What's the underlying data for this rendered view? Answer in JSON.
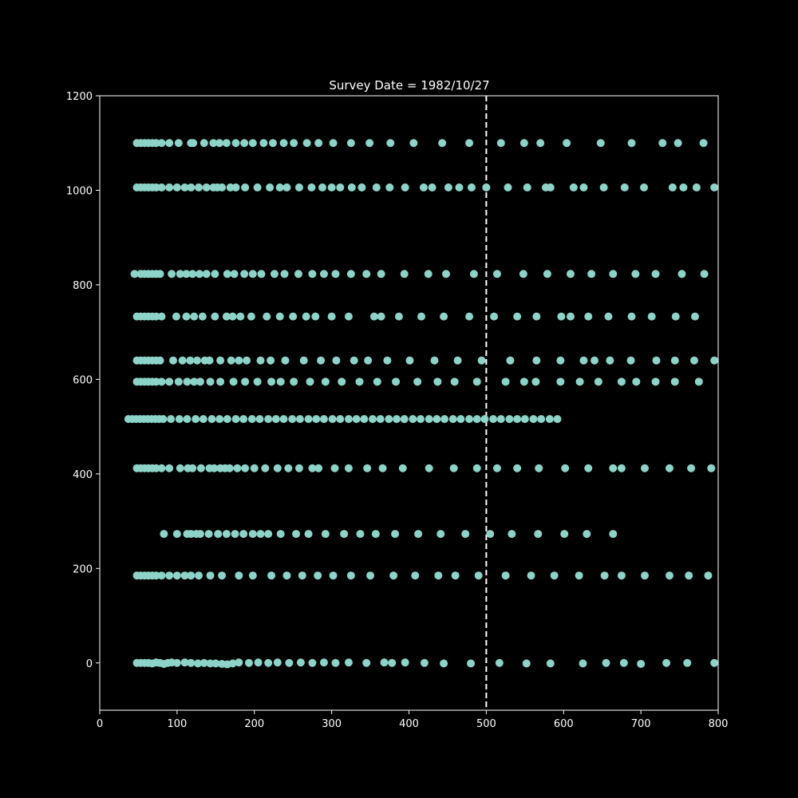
{
  "chart_data": {
    "type": "scatter",
    "title": "Survey Date = 1982/10/27",
    "xlabel": "",
    "ylabel": "",
    "xlim": [
      0,
      800
    ],
    "ylim": [
      -100,
      1200
    ],
    "xticks": [
      0,
      100,
      200,
      300,
      400,
      500,
      600,
      700,
      800
    ],
    "yticks": [
      0,
      200,
      400,
      600,
      800,
      1000,
      1200
    ],
    "xtick_labels": [
      "0",
      "100",
      "200",
      "300",
      "400",
      "500",
      "600",
      "700",
      "800"
    ],
    "ytick_labels": [
      "0",
      "200",
      "400",
      "600",
      "800",
      "1000",
      "1200"
    ],
    "grid": false,
    "background": "#000000",
    "axis_color": "#ffffff",
    "marker_color": "#8dd3c7",
    "reference_line": {
      "x": 500,
      "style": "dashed",
      "color": "#ffffff"
    },
    "rows": [
      {
        "y": 0,
        "x": [
          48,
          53,
          58,
          63,
          68,
          73,
          78,
          83,
          88,
          93,
          100,
          110,
          118,
          127,
          135,
          143,
          150,
          158,
          165,
          172,
          180,
          193,
          205,
          218,
          230,
          245,
          260,
          275,
          290,
          305,
          322,
          345,
          368,
          378,
          395,
          420,
          445,
          480,
          517,
          552,
          583,
          625,
          655,
          678,
          700,
          733,
          760,
          795
        ],
        "dy": [
          0,
          0,
          0,
          0,
          -1,
          1,
          0,
          -2,
          0,
          1,
          0,
          1,
          0,
          -1,
          0,
          -1,
          -1,
          -2,
          -3,
          -1,
          1,
          0,
          1,
          0,
          1,
          0,
          1,
          0,
          1,
          0,
          1,
          0,
          1,
          0,
          1,
          0,
          -1,
          -1,
          0,
          -1,
          -1,
          -1,
          0,
          0,
          -2,
          0,
          0,
          0
        ]
      },
      {
        "y": 185,
        "x": [
          48,
          53,
          58,
          63,
          68,
          73,
          80,
          90,
          100,
          110,
          118,
          128,
          143,
          158,
          180,
          198,
          222,
          242,
          262,
          282,
          302,
          325,
          350,
          380,
          408,
          438,
          460,
          490,
          525,
          558,
          588,
          620,
          653,
          675,
          705,
          737,
          762,
          787
        ]
      },
      {
        "y": 273,
        "x": [
          83,
          100,
          113,
          118,
          125,
          130,
          141,
          153,
          164,
          175,
          186,
          198,
          208,
          218,
          234,
          254,
          270,
          292,
          316,
          337,
          357,
          382,
          412,
          441,
          473,
          505,
          533,
          567,
          601,
          630,
          664
        ]
      },
      {
        "y": 412,
        "x": [
          48,
          53,
          58,
          63,
          68,
          73,
          80,
          90,
          104,
          114,
          120,
          131,
          142,
          148,
          156,
          162,
          168,
          178,
          188,
          200,
          214,
          230,
          244,
          258,
          275,
          283,
          304,
          322,
          346,
          366,
          392,
          426,
          458,
          488,
          514,
          540,
          568,
          602,
          632,
          664,
          675,
          705,
          737,
          765,
          791
        ]
      },
      {
        "y": 516,
        "x": [
          37,
          42,
          47,
          52,
          57,
          62,
          67,
          72,
          77,
          82,
          92,
          103,
          113,
          124,
          134,
          145,
          155,
          165,
          176,
          186,
          197,
          207,
          218,
          228,
          238,
          249,
          259,
          270,
          280,
          290,
          301,
          311,
          322,
          332,
          342,
          353,
          363,
          374,
          384,
          394,
          405,
          415,
          426,
          436,
          446,
          457,
          467,
          478,
          488,
          498,
          509,
          519,
          530,
          540,
          550,
          561,
          571,
          582,
          592
        ]
      },
      {
        "y": 595,
        "x": [
          48,
          53,
          58,
          63,
          68,
          73,
          80,
          90,
          102,
          113,
          122,
          130,
          143,
          156,
          173,
          188,
          204,
          222,
          234,
          251,
          272,
          292,
          313,
          336,
          359,
          383,
          411,
          437,
          459,
          488,
          525,
          549,
          564,
          596,
          621,
          645,
          675,
          694,
          719,
          744,
          775
        ]
      },
      {
        "y": 640,
        "x": [
          48,
          53,
          58,
          63,
          68,
          73,
          78,
          95,
          107,
          117,
          126,
          136,
          142,
          156,
          170,
          180,
          190,
          208,
          221,
          240,
          264,
          286,
          306,
          329,
          347,
          372,
          401,
          433,
          463,
          494,
          531,
          565,
          596,
          626,
          640,
          660,
          687,
          720,
          744,
          769,
          795
        ]
      },
      {
        "y": 733,
        "x": [
          48,
          53,
          58,
          63,
          68,
          73,
          80,
          99,
          112,
          122,
          133,
          149,
          164,
          172,
          182,
          196,
          216,
          233,
          250,
          267,
          279,
          300,
          322,
          355,
          364,
          387,
          416,
          445,
          478,
          510,
          540,
          565,
          597,
          609,
          632,
          658,
          688,
          714,
          745,
          770
        ]
      },
      {
        "y": 823,
        "x": [
          45,
          53,
          58,
          63,
          68,
          73,
          78,
          93,
          104,
          112,
          120,
          129,
          138,
          149,
          165,
          174,
          187,
          198,
          209,
          226,
          239,
          257,
          275,
          290,
          305,
          325,
          345,
          364,
          394,
          425,
          448,
          484,
          514,
          548,
          579,
          609,
          636,
          664,
          693,
          719,
          753,
          782
        ]
      },
      {
        "y": 1006,
        "x": [
          48,
          53,
          58,
          63,
          68,
          73,
          80,
          90,
          100,
          110,
          118,
          128,
          138,
          147,
          152,
          158,
          169,
          176,
          188,
          204,
          220,
          233,
          242,
          258,
          274,
          288,
          300,
          311,
          326,
          339,
          358,
          375,
          395,
          419,
          430,
          451,
          465,
          481,
          500,
          528,
          553,
          577,
          583,
          613,
          626,
          652,
          679,
          704,
          741,
          755,
          772,
          795
        ]
      },
      {
        "y": 1100,
        "x": [
          48,
          53,
          58,
          63,
          68,
          73,
          80,
          90,
          102,
          118,
          121,
          135,
          147,
          155,
          164,
          176,
          187,
          198,
          212,
          224,
          238,
          251,
          268,
          283,
          302,
          325,
          349,
          376,
          406,
          443,
          478,
          519,
          549,
          570,
          604,
          648,
          688,
          728,
          748,
          781
        ]
      }
    ]
  }
}
